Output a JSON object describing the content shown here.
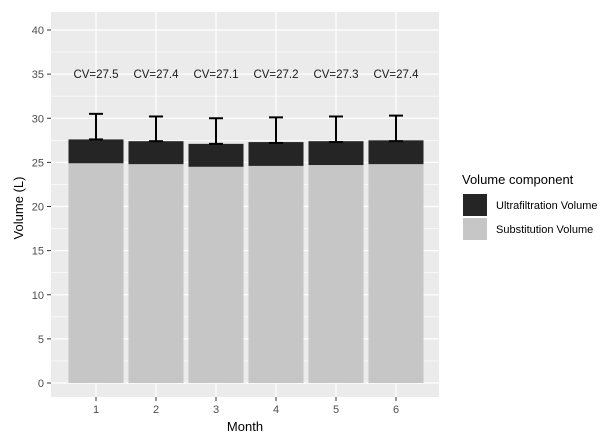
{
  "chart_data": {
    "type": "bar",
    "stacked": true,
    "title": "",
    "xlabel": "Month",
    "ylabel": "Volume (L)",
    "categories": [
      "1",
      "2",
      "3",
      "4",
      "5",
      "6"
    ],
    "ylim": [
      0,
      40
    ],
    "yticks": [
      0,
      5,
      10,
      15,
      20,
      25,
      30,
      35,
      40
    ],
    "grid": true,
    "legend_title": "Volume component",
    "legend_position": "right",
    "series": [
      {
        "name": "Substitution Volume",
        "values": [
          24.9,
          24.8,
          24.5,
          24.6,
          24.7,
          24.8
        ],
        "color": "#c6c6c6"
      },
      {
        "name": "Ultrafiltration Volume",
        "values": [
          2.7,
          2.6,
          2.6,
          2.7,
          2.7,
          2.7
        ],
        "color": "#252525"
      }
    ],
    "error_bars": {
      "lower": [
        27.6,
        27.4,
        27.1,
        27.2,
        27.3,
        27.4
      ],
      "upper": [
        30.5,
        30.2,
        30.0,
        30.1,
        30.2,
        30.3
      ]
    },
    "annotations": [
      "CV=27.5",
      "CV=27.4",
      "CV=27.1",
      "CV=27.2",
      "CV=27.3",
      "CV=27.4"
    ],
    "annotation_y": 35
  }
}
